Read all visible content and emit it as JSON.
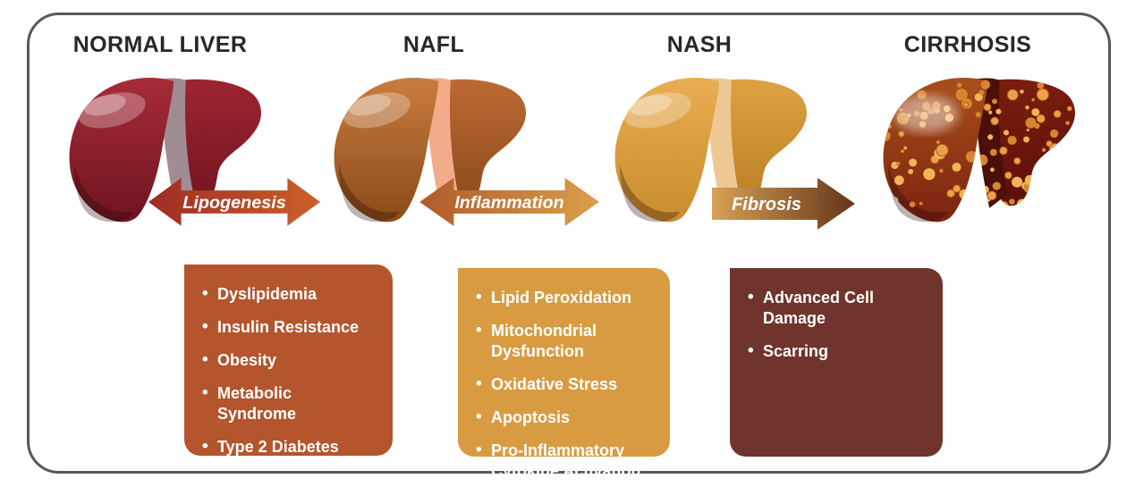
{
  "diagram": {
    "frame_border_color": "#57585a",
    "title_color": "#2a2526",
    "stages": [
      {
        "label": "NORMAL LIVER",
        "liver": {
          "main": [
            "#a62c38",
            "#6f1420"
          ],
          "right": [
            "#9c2530",
            "#731520"
          ],
          "band": "#a28c93"
        }
      },
      {
        "label": "NAFL",
        "liver": {
          "main": [
            "#c97c40",
            "#8a4b18"
          ],
          "right": [
            "#bd6a32",
            "#8a4a1d"
          ],
          "band": "#f3ac89"
        }
      },
      {
        "label": "NASH",
        "liver": {
          "main": [
            "#e9ad53",
            "#c88d2c"
          ],
          "right": [
            "#dfa243",
            "#b97f23"
          ],
          "band": "#eec893"
        }
      },
      {
        "label": "CIRRHOSIS",
        "liver": {
          "main": [
            "#a8501b",
            "#7c2210"
          ],
          "right": [
            "#7b1d0e",
            "#591109"
          ],
          "band": "#4a1009",
          "nodules": [
            "#eda04a",
            "#f2b456",
            "#d8862e"
          ]
        }
      }
    ],
    "transitions": [
      {
        "label": "Lipogenesis",
        "direction": "double",
        "gradient": [
          "#9e2b25",
          "#cc6128"
        ]
      },
      {
        "label": "Inflammation",
        "direction": "double",
        "gradient": [
          "#b05a2b",
          "#daa04b"
        ]
      },
      {
        "label": "Fibrosis",
        "direction": "single",
        "gradient": [
          "#d6a256",
          "#643519"
        ]
      }
    ],
    "factor_boxes": [
      {
        "background": "#b4552d",
        "items": [
          "Dyslipidemia",
          "Insulin Resistance",
          "Obesity",
          "Metabolic Syndrome",
          "Type 2 Diabetes"
        ]
      },
      {
        "background": "#d89b41",
        "items": [
          "Lipid Peroxidation",
          "Mitochondrial Dysfunction",
          "Oxidative Stress",
          "Apoptosis",
          "Pro-Inflammatory Cytokine Activation"
        ]
      },
      {
        "background": "#6f352c",
        "items": [
          "Advanced Cell Damage",
          "Scarring"
        ]
      }
    ]
  }
}
